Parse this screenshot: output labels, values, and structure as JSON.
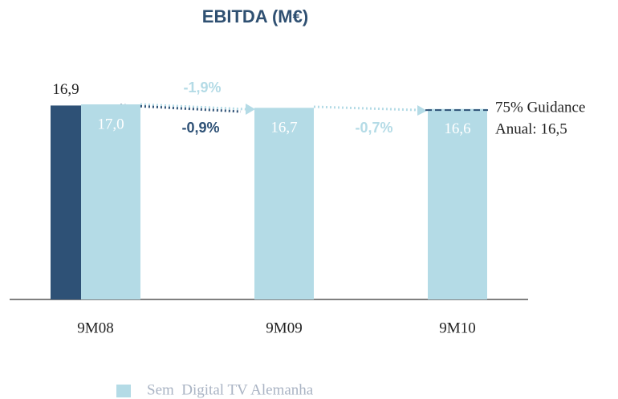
{
  "chart_data": {
    "type": "bar",
    "title": "EBITDA (M€)",
    "categories": [
      "9M08",
      "9M09",
      "9M10"
    ],
    "series": [
      {
        "color": "#2e5176",
        "values": [
          16.9,
          null,
          null
        ],
        "value_labels": [
          "16,9",
          null,
          null
        ]
      },
      {
        "name": "Sem  Digital TV Alemanha",
        "color": "#b4dbe6",
        "values": [
          17.0,
          16.7,
          16.6
        ],
        "value_labels": [
          "17,0",
          "16,7",
          "16,6"
        ]
      }
    ],
    "ylim": [
      0,
      17
    ],
    "annotations": [
      "-1,9%",
      "-0,9%",
      "-0,7%"
    ],
    "guidance": {
      "value": 16.5,
      "lines": [
        "75% Guidance",
        "Anual: 16,5"
      ]
    }
  }
}
